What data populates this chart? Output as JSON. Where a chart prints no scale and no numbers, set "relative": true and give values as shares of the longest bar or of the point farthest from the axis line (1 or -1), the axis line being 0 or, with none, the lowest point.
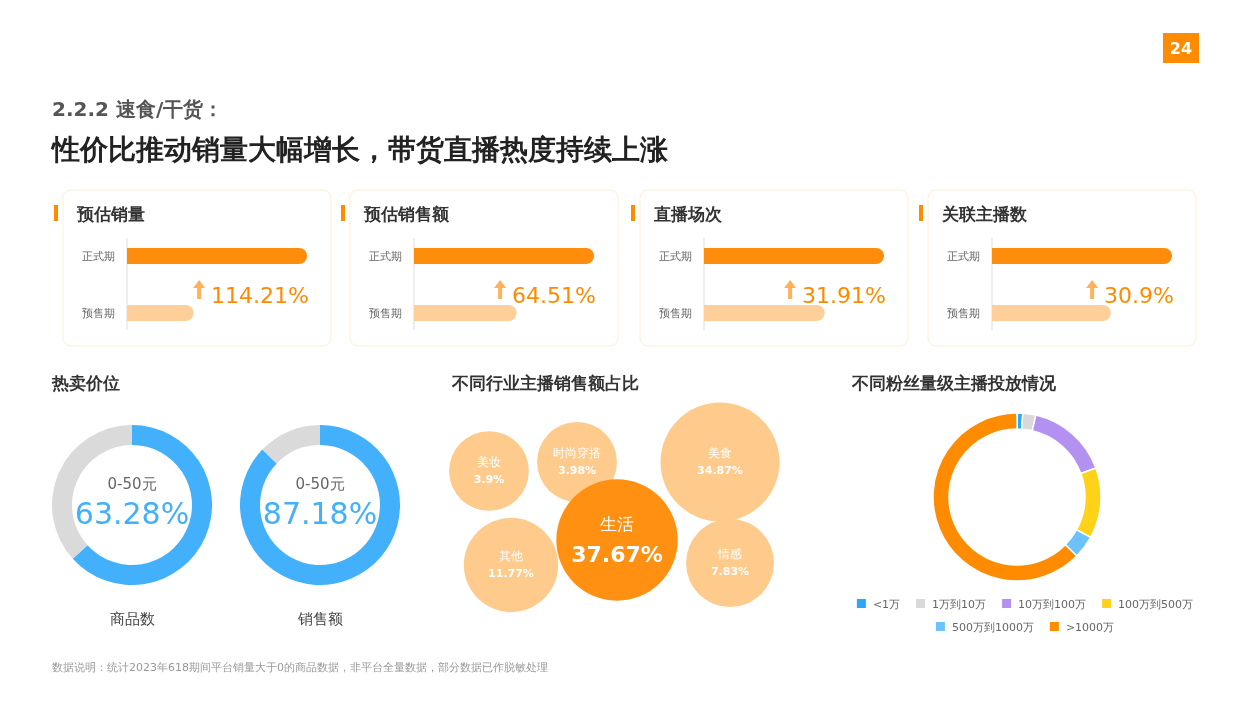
{
  "chart_data": [
    {
      "type": "other",
      "subtitle": "2.2.2 速食/干货：",
      "title": "性价比推动销量大幅增长，带货直播热度持续上涨",
      "annotations": [
        "数据说明：统计2023年618期间平台销量大于0的商品数据，非平台全量数据，部分数据已作脱敏处理",
        "24"
      ]
    },
    {
      "type": "bar",
      "orientation": "horizontal",
      "relative": true,
      "title": "预估销量",
      "categories": [
        "正式期",
        "预售期"
      ],
      "values": [
        1,
        0.37
      ],
      "colors": [
        "#ff8c0a",
        "#fecf98"
      ],
      "annotations": [
        "114.21%"
      ]
    },
    {
      "type": "bar",
      "orientation": "horizontal",
      "relative": true,
      "title": "预估销售额",
      "categories": [
        "正式期",
        "预售期"
      ],
      "values": [
        1,
        0.57
      ],
      "colors": [
        "#ff8c0a",
        "#fecf98"
      ],
      "annotations": [
        "64.51%"
      ]
    },
    {
      "type": "bar",
      "orientation": "horizontal",
      "relative": true,
      "title": "直播场次",
      "categories": [
        "正式期",
        "预售期"
      ],
      "values": [
        1,
        0.67
      ],
      "colors": [
        "#ff8c0a",
        "#fecf98"
      ],
      "annotations": [
        "31.91%"
      ]
    },
    {
      "type": "bar",
      "orientation": "horizontal",
      "relative": true,
      "title": "关联主播数",
      "categories": [
        "正式期",
        "预售期"
      ],
      "values": [
        1,
        0.66
      ],
      "colors": [
        "#ff8c0a",
        "#fecf98"
      ],
      "annotations": [
        "30.9%"
      ]
    },
    {
      "type": "donut",
      "title": "热卖价位",
      "xlabel": "商品数",
      "categories": [
        "0-50元",
        null
      ],
      "values": [
        63.28,
        36.72
      ],
      "colors": [
        "#42b0fa",
        "#dadada"
      ],
      "value_labels": [
        "63.28%",
        null
      ]
    },
    {
      "type": "donut",
      "xlabel": "销售额",
      "categories": [
        "0-50元",
        null
      ],
      "values": [
        87.18,
        12.82
      ],
      "colors": [
        "#42b0fa",
        "#dadada"
      ],
      "value_labels": [
        "87.18%",
        null
      ]
    },
    {
      "type": "other",
      "title": "不同行业主播销售额占比",
      "categories": [
        "美妆",
        "时尚穿搭",
        "美食",
        "生活",
        "其他",
        "情感"
      ],
      "values": [
        3.9,
        3.98,
        34.87,
        37.67,
        11.77,
        7.83
      ],
      "colors": [
        "#fecb8c",
        "#fecb8c",
        "#fecb8c",
        "#ff9012",
        "#fecb8c",
        "#fecb8c"
      ],
      "value_labels": [
        "3.9%",
        "3.98%",
        "34.87%",
        "37.67%",
        "11.77%",
        "7.83%"
      ]
    },
    {
      "type": "donut",
      "title": "不同粉丝量级主播投放情况",
      "categories": [
        "<1万",
        "1万到10万",
        "10万到100万",
        "100万到500万",
        "500万到1000万",
        ">1000万"
      ],
      "values": [
        1.1,
        2.5,
        15.8,
        13.6,
        4.4,
        62.6
      ],
      "colors": [
        "#2fa6f5",
        "#d9d9d9",
        "#b291f0",
        "#ffd21a",
        "#6cc3fb",
        "#ff8c00"
      ],
      "legend": "bottom"
    }
  ]
}
